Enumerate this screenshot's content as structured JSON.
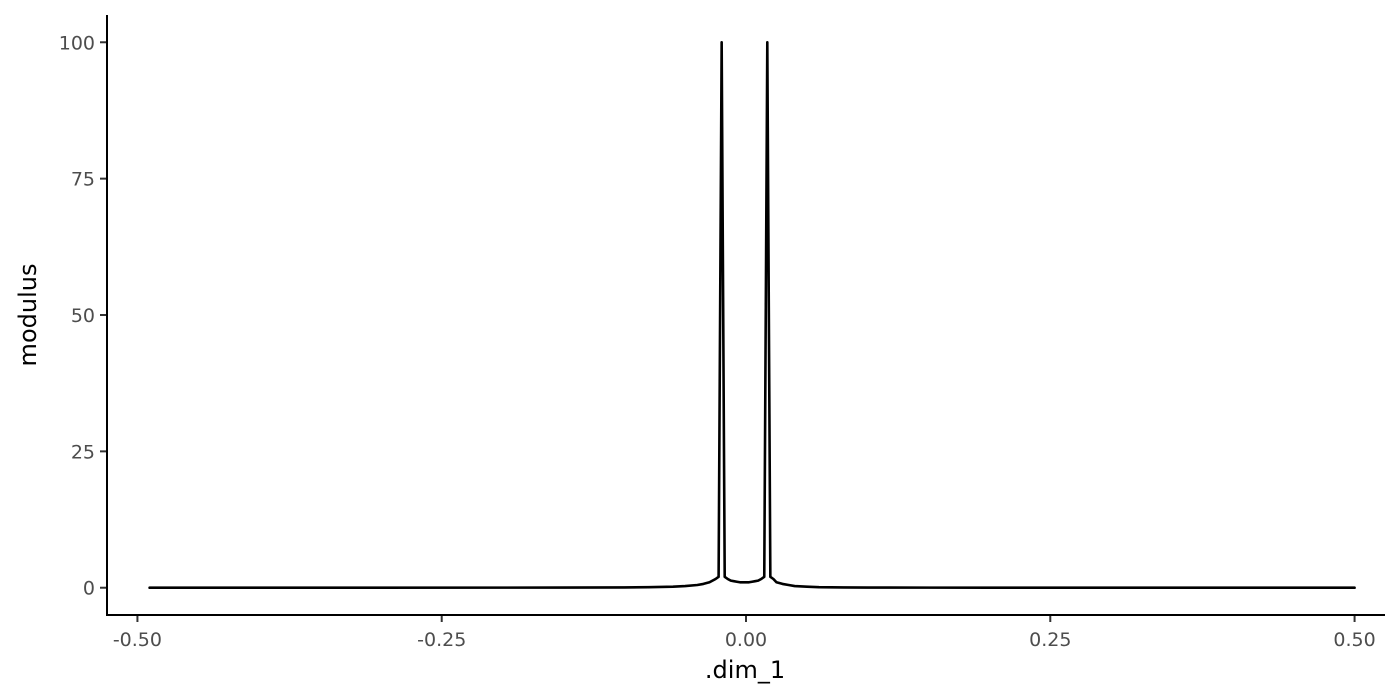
{
  "chart_data": {
    "type": "line",
    "title": "",
    "xlabel": ".dim_1",
    "ylabel": "modulus",
    "xlim": [
      -0.525,
      0.525
    ],
    "ylim": [
      -5,
      105
    ],
    "xticks": [
      -0.5,
      -0.25,
      0.0,
      0.25,
      0.5
    ],
    "xtick_labels": [
      "-0.50",
      "-0.25",
      "0.00",
      "0.25",
      "0.50"
    ],
    "yticks": [
      0,
      25,
      50,
      75,
      100
    ],
    "ytick_labels": [
      "0",
      "25",
      "50",
      "75",
      "100"
    ],
    "grid": false,
    "series": [
      {
        "color": "#000000",
        "x": [
          -0.49,
          -0.4,
          -0.3,
          -0.2,
          -0.15,
          -0.1,
          -0.08,
          -0.06,
          -0.05,
          -0.04,
          -0.035,
          -0.03,
          -0.025,
          -0.0225,
          -0.02,
          -0.0175,
          -0.015,
          -0.0125,
          -0.01,
          -0.0075,
          -0.005,
          -0.0025,
          0.0,
          0.0025,
          0.005,
          0.0075,
          0.01,
          0.0125,
          0.015,
          0.0175,
          0.02,
          0.0225,
          0.025,
          0.03,
          0.035,
          0.04,
          0.05,
          0.06,
          0.08,
          0.1,
          0.15,
          0.2,
          0.3,
          0.4,
          0.5
        ],
        "y": [
          0,
          0,
          0,
          0.02,
          0.03,
          0.06,
          0.1,
          0.2,
          0.3,
          0.5,
          0.7,
          1.0,
          1.6,
          2.0,
          100,
          2.0,
          1.6,
          1.3,
          1.2,
          1.1,
          1.0,
          1.0,
          1.0,
          1.0,
          1.1,
          1.2,
          1.3,
          1.6,
          2.0,
          100,
          2.0,
          1.6,
          1.0,
          0.7,
          0.5,
          0.3,
          0.2,
          0.1,
          0.06,
          0.03,
          0.02,
          0.01,
          0,
          0,
          0
        ]
      }
    ]
  }
}
